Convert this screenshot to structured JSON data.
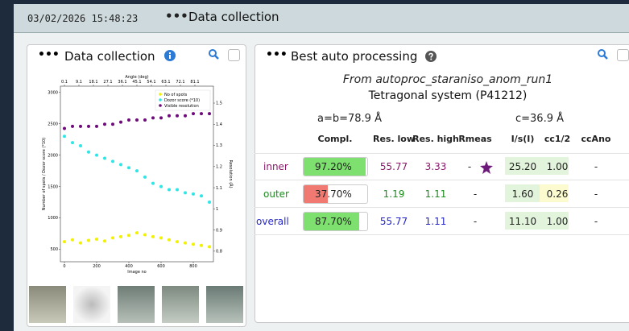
{
  "header": {
    "timestamp": "03/02/2026 15:48:23",
    "menu": "•••",
    "title": "Data collection"
  },
  "left_panel": {
    "menu": "•••",
    "title": "Data collection"
  },
  "chart_data": {
    "type": "scatter",
    "x_label": "Image no",
    "x2_label": "Angle (deg)",
    "y_label": "Number of spots / Dozor score (*10)",
    "y2_label": "Resolution (Å)",
    "x": [
      0,
      50,
      100,
      150,
      200,
      250,
      300,
      350,
      400,
      450,
      500,
      550,
      600,
      650,
      700,
      750,
      800,
      850,
      900
    ],
    "series": [
      {
        "name": "No of spots",
        "color": "#f2f200",
        "values": [
          620,
          650,
          600,
          640,
          660,
          630,
          680,
          700,
          720,
          760,
          730,
          700,
          680,
          650,
          620,
          600,
          580,
          560,
          540
        ]
      },
      {
        "name": "Dozor score (*10)",
        "color": "#2ee6e6",
        "values": [
          2300,
          2200,
          2150,
          2050,
          2000,
          1950,
          1900,
          1850,
          1800,
          1750,
          1650,
          1550,
          1500,
          1450,
          1450,
          1400,
          1380,
          1350,
          1250
        ]
      },
      {
        "name": "Visible resolution",
        "color": "#6e0a7a",
        "axis": "y2",
        "values": [
          1.38,
          1.39,
          1.39,
          1.39,
          1.39,
          1.4,
          1.4,
          1.41,
          1.42,
          1.42,
          1.42,
          1.43,
          1.43,
          1.44,
          1.44,
          1.44,
          1.45,
          1.45,
          1.45
        ]
      }
    ],
    "xlim": [
      -25,
      925
    ],
    "xticks": [
      0,
      200,
      400,
      600,
      800
    ],
    "x2lim": [
      -2.4,
      92.6
    ],
    "x2ticks": [
      0.1,
      9.1,
      18.1,
      27.1,
      36.1,
      45.1,
      54.1,
      63.1,
      72.1,
      81.1
    ],
    "ylim": [
      300,
      3100
    ],
    "yticks": [
      500,
      1000,
      1500,
      2000,
      2500,
      3000
    ],
    "y2lim": [
      0.75,
      1.58
    ],
    "y2ticks": [
      0.8,
      0.9,
      1.0,
      1.1,
      1.2,
      1.3,
      1.4,
      1.5
    ],
    "legend": "upper right",
    "grid": false
  },
  "right_panel": {
    "menu": "•••",
    "title": "Best auto processing",
    "source": "From autoproc_staraniso_anom_run1",
    "system": "Tetragonal system (P41212)",
    "cell_ab": "a=b=78.9 Å",
    "cell_c": "c=36.9 Å",
    "table": {
      "columns": [
        "Compl.",
        "Res. low",
        "Res. high",
        "Rmeas",
        "I/s(I)",
        "cc1/2",
        "ccAno"
      ],
      "rows": [
        {
          "label": "inner",
          "color": "#8b1a6b",
          "compl": {
            "value": 97.2,
            "label": "97.20%"
          },
          "compl_color": "#7ee06e",
          "cells": [
            "55.77",
            "3.33",
            "-",
            "25.20",
            "1.00",
            "-"
          ],
          "cell_bg": [
            null,
            null,
            null,
            "#e2f5dc",
            "#e2f5dc",
            null
          ]
        },
        {
          "label": "outer",
          "color": "#1f8a1f",
          "compl": {
            "value": 37.7,
            "label": "37.70%"
          },
          "compl_color": "#f07a72",
          "cells": [
            "1.19",
            "1.11",
            "-",
            "1.60",
            "0.26",
            "-"
          ],
          "cell_bg": [
            null,
            null,
            null,
            "#e2f5dc",
            "#fbfbcf",
            null
          ]
        },
        {
          "label": "overall",
          "color": "#2525c8",
          "compl": {
            "value": 87.7,
            "label": "87.70%"
          },
          "compl_color": "#7ee06e",
          "cells": [
            "55.77",
            "1.11",
            "-",
            "11.10",
            "1.00",
            "-"
          ],
          "cell_bg": [
            null,
            null,
            null,
            "#e2f5dc",
            "#e2f5dc",
            null
          ]
        }
      ]
    }
  }
}
